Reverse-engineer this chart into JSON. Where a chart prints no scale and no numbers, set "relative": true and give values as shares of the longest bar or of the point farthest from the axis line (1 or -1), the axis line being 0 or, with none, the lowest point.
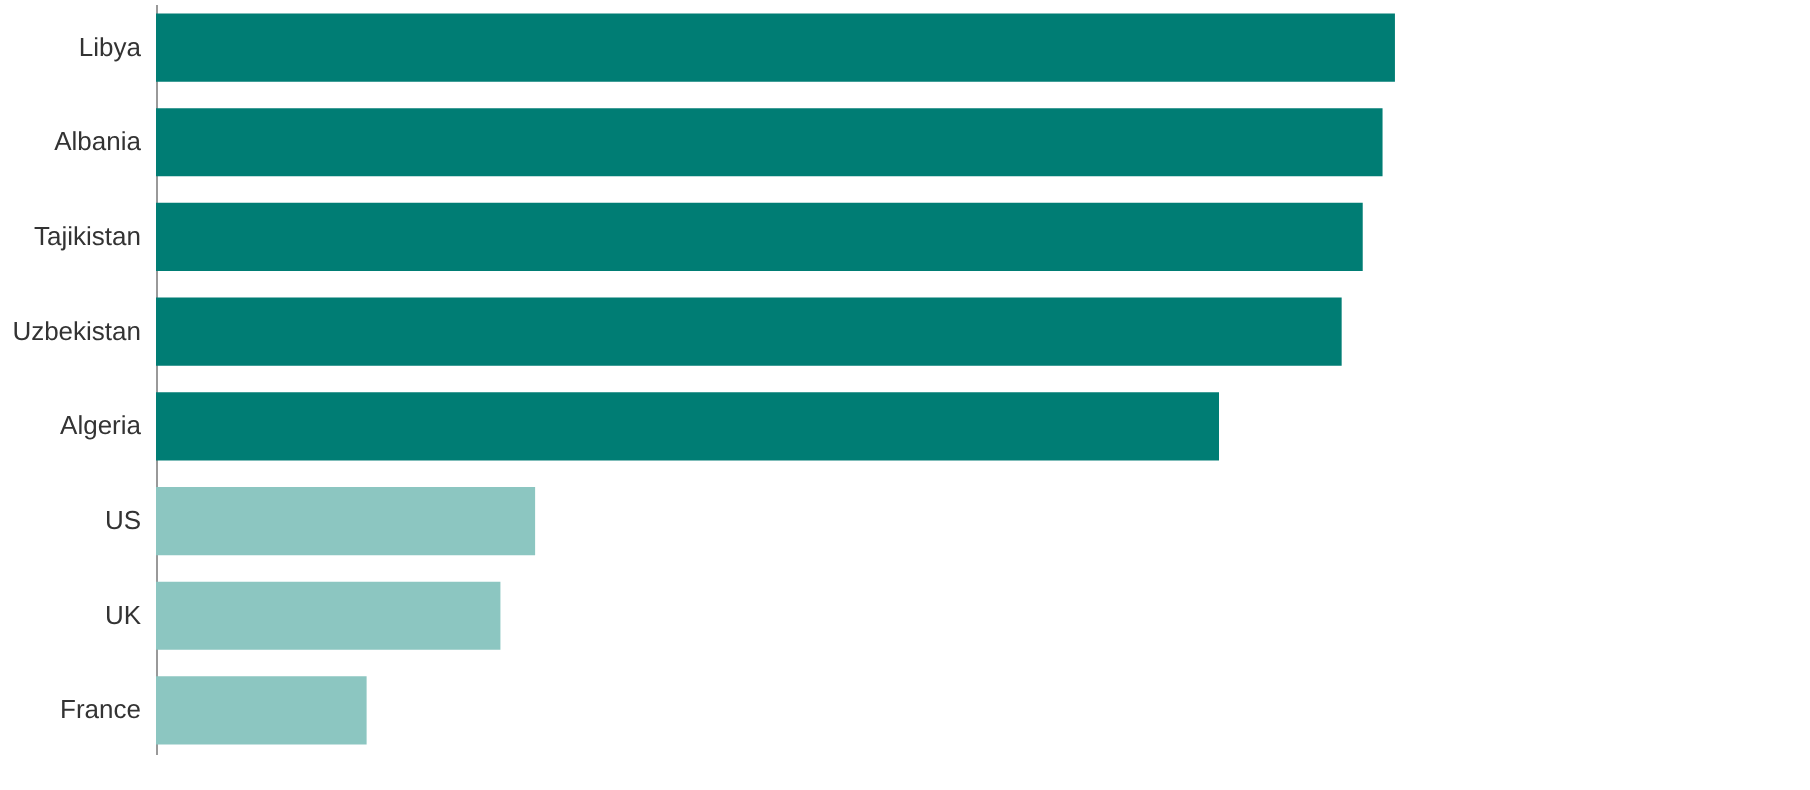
{
  "chart_data": {
    "type": "bar",
    "orientation": "horizontal",
    "relative": true,
    "categories": [
      "Libya",
      "Albania",
      "Tajikistan",
      "Uzbekistan",
      "Algeria",
      "US",
      "UK",
      "France"
    ],
    "values": [
      1,
      0.99,
      0.974,
      0.957,
      0.858,
      0.306,
      0.278,
      0.17
    ],
    "colors": [
      "#007d74",
      "#007d74",
      "#007d74",
      "#007d74",
      "#007d74",
      "#8cc6c1",
      "#8cc6c1",
      "#8cc6c1"
    ]
  }
}
